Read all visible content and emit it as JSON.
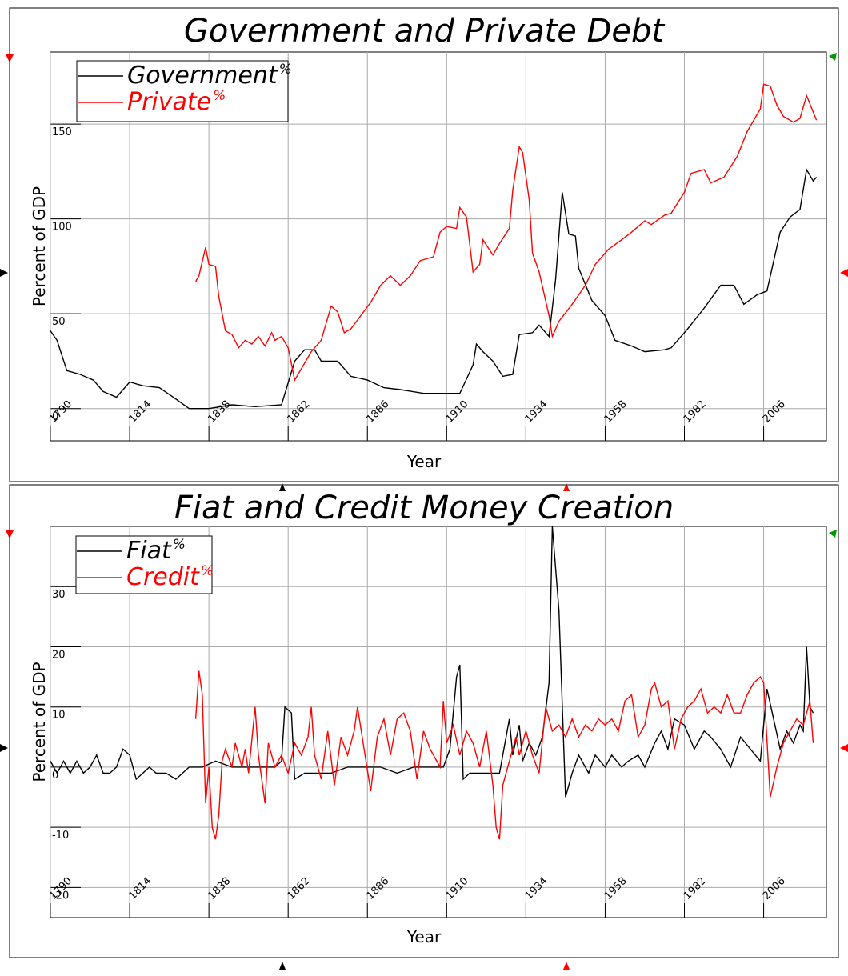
{
  "chart_data": [
    {
      "type": "line",
      "title": "Government and Private Debt",
      "x_label": "Year",
      "y_label": "Percent of GDP",
      "xlim": [
        1790,
        2025
      ],
      "ylim": [
        -17,
        188
      ],
      "grid": true,
      "xticks": [
        1790,
        1814,
        1838,
        1862,
        1886,
        1910,
        1934,
        1958,
        1982,
        2006
      ],
      "yticks": [
        0,
        50,
        100,
        150
      ],
      "series": [
        {
          "name": "Government",
          "units": "%",
          "color": "#000000",
          "x": [
            1790,
            1792,
            1795,
            1799,
            1803,
            1806,
            1810,
            1814,
            1818,
            1823,
            1828,
            1832,
            1838,
            1845,
            1852,
            1860,
            1864,
            1867,
            1870,
            1872,
            1877,
            1881,
            1886,
            1891,
            1896,
            1903,
            1910,
            1914,
            1918,
            1919,
            1921,
            1924,
            1927,
            1930,
            1932,
            1936,
            1938,
            1941,
            1943,
            1945,
            1947,
            1949,
            1950,
            1954,
            1958,
            1961,
            1966,
            1970,
            1976,
            1978,
            1983,
            1988,
            1993,
            1997,
            2000,
            2004,
            2007,
            2011,
            2014,
            2017,
            2019,
            2021,
            2022
          ],
          "values": [
            41,
            36,
            20,
            18,
            15,
            9,
            6,
            14,
            12,
            11,
            5,
            0,
            0,
            2,
            1,
            2,
            25,
            31,
            31,
            25,
            25,
            17,
            15,
            11,
            10,
            8,
            8,
            8,
            23,
            34,
            30,
            25,
            17,
            18,
            39,
            40,
            44,
            38,
            68,
            114,
            92,
            91,
            74,
            57,
            49,
            36,
            33,
            30,
            31,
            32,
            42,
            53,
            65,
            65,
            55,
            60,
            62,
            93,
            101,
            105,
            126,
            120,
            122
          ]
        },
        {
          "name": "Private",
          "units": "%",
          "color": "#ff0000",
          "x": [
            1834,
            1835,
            1837,
            1838,
            1840,
            1841,
            1843,
            1845,
            1847,
            1849,
            1851,
            1853,
            1855,
            1857,
            1858,
            1860,
            1862,
            1864,
            1866,
            1869,
            1872,
            1875,
            1877,
            1879,
            1881,
            1884,
            1887,
            1890,
            1893,
            1896,
            1899,
            1902,
            1906,
            1908,
            1910,
            1913,
            1914,
            1916,
            1918,
            1920,
            1921,
            1924,
            1926,
            1929,
            1930,
            1932,
            1933,
            1935,
            1936,
            1938,
            1941,
            1942,
            1944,
            1948,
            1952,
            1955,
            1959,
            1963,
            1966,
            1970,
            1972,
            1976,
            1978,
            1982,
            1984,
            1988,
            1990,
            1994,
            1998,
            2001,
            2005,
            2006,
            2008,
            2010,
            2012,
            2015,
            2017,
            2019,
            2022
          ],
          "values": [
            67,
            70,
            85,
            76,
            75,
            59,
            41,
            39,
            32,
            36,
            34,
            38,
            33,
            40,
            36,
            38,
            32,
            15,
            21,
            30,
            36,
            54,
            51,
            40,
            42,
            49,
            56,
            65,
            70,
            65,
            70,
            78,
            80,
            93,
            96,
            95,
            106,
            101,
            72,
            76,
            89,
            81,
            87,
            95,
            115,
            138,
            135,
            110,
            82,
            72,
            49,
            38,
            46,
            55,
            65,
            76,
            84,
            89,
            93,
            99,
            97,
            102,
            103,
            114,
            124,
            126,
            119,
            122,
            133,
            146,
            158,
            171,
            170,
            160,
            154,
            151,
            153,
            165,
            152
          ]
        }
      ]
    },
    {
      "type": "line",
      "title": "Fiat and Credit Money Creation",
      "x_label": "Year",
      "y_label": "Percent of GDP",
      "xlim": [
        1790,
        2025
      ],
      "ylim": [
        -25,
        40
      ],
      "grid": true,
      "xticks": [
        1790,
        1814,
        1838,
        1862,
        1886,
        1910,
        1934,
        1958,
        1982,
        2006
      ],
      "yticks": [
        -20,
        -10,
        0,
        10,
        20,
        30
      ],
      "series": [
        {
          "name": "Fiat",
          "units": "%",
          "color": "#000000",
          "x": [
            1790,
            1792,
            1794,
            1796,
            1798,
            1800,
            1802,
            1804,
            1806,
            1808,
            1810,
            1812,
            1814,
            1816,
            1818,
            1820,
            1822,
            1825,
            1828,
            1832,
            1836,
            1840,
            1845,
            1850,
            1855,
            1858,
            1860,
            1861,
            1863,
            1864,
            1867,
            1870,
            1875,
            1880,
            1885,
            1890,
            1895,
            1900,
            1905,
            1909,
            1911,
            1913,
            1914,
            1915,
            1917,
            1920,
            1923,
            1926,
            1928,
            1929,
            1930,
            1932,
            1933,
            1935,
            1937,
            1939,
            1941,
            1942,
            1944,
            1946,
            1948,
            1950,
            1953,
            1955,
            1958,
            1960,
            1963,
            1965,
            1968,
            1970,
            1973,
            1975,
            1977,
            1979,
            1982,
            1985,
            1988,
            1990,
            1993,
            1996,
            1999,
            2002,
            2005,
            2007,
            2009,
            2011,
            2013,
            2015,
            2017,
            2018,
            2019,
            2020,
            2021
          ],
          "values": [
            1,
            -1,
            1,
            -1,
            1,
            -1,
            0,
            2,
            -1,
            -1,
            0,
            3,
            2,
            -2,
            -1,
            0,
            -1,
            -1,
            -2,
            0,
            0,
            1,
            0,
            0,
            0,
            0,
            1,
            10,
            9,
            -2,
            -1,
            -1,
            -1,
            0,
            0,
            0,
            -1,
            0,
            0,
            0,
            3,
            15,
            17,
            -2,
            -1,
            -1,
            -1,
            -1,
            5,
            8,
            2,
            7,
            1,
            4,
            2,
            5,
            14,
            40,
            26,
            -5,
            -1,
            2,
            -1,
            2,
            0,
            2,
            0,
            1,
            2,
            0,
            4,
            6,
            3,
            8,
            7,
            3,
            6,
            5,
            3,
            0,
            5,
            3,
            1,
            13,
            8,
            3,
            6,
            4,
            7,
            6,
            20,
            10,
            9
          ]
        },
        {
          "name": "Credit",
          "units": "%",
          "color": "#ff0000",
          "x": [
            1834,
            1835,
            1836,
            1837,
            1838,
            1839,
            1840,
            1841,
            1842,
            1843,
            1845,
            1846,
            1848,
            1849,
            1850,
            1852,
            1853,
            1855,
            1856,
            1858,
            1860,
            1862,
            1864,
            1866,
            1868,
            1869,
            1870,
            1872,
            1874,
            1876,
            1878,
            1880,
            1882,
            1883,
            1885,
            1887,
            1889,
            1891,
            1893,
            1895,
            1897,
            1899,
            1901,
            1903,
            1905,
            1908,
            1909,
            1910,
            1912,
            1914,
            1916,
            1918,
            1920,
            1922,
            1924,
            1925,
            1926,
            1927,
            1929,
            1931,
            1932,
            1934,
            1936,
            1938,
            1940,
            1942,
            1944,
            1946,
            1948,
            1950,
            1952,
            1954,
            1956,
            1958,
            1960,
            1962,
            1964,
            1966,
            1968,
            1970,
            1972,
            1973,
            1975,
            1977,
            1979,
            1981,
            1983,
            1985,
            1987,
            1989,
            1991,
            1993,
            1995,
            1997,
            1999,
            2001,
            2003,
            2005,
            2006,
            2008,
            2010,
            2012,
            2014,
            2016,
            2018,
            2020,
            2021
          ],
          "values": [
            8,
            16,
            12,
            -6,
            0,
            -10,
            -12,
            -8,
            1,
            3,
            0,
            4,
            0,
            3,
            -1,
            10,
            2,
            -6,
            4,
            0,
            2,
            -1,
            4,
            2,
            5,
            10,
            2,
            -2,
            6,
            -3,
            5,
            2,
            6,
            10,
            3,
            -4,
            5,
            8,
            2,
            8,
            9,
            6,
            -2,
            6,
            3,
            0,
            11,
            4,
            7,
            2,
            6,
            4,
            0,
            6,
            -3,
            -10,
            -12,
            -3,
            1,
            5,
            2,
            6,
            2,
            -1,
            10,
            6,
            7,
            5,
            8,
            5,
            7,
            6,
            8,
            7,
            8,
            6,
            11,
            12,
            5,
            7,
            13,
            14,
            10,
            11,
            3,
            8,
            10,
            11,
            13,
            9,
            10,
            9,
            12,
            9,
            9,
            12,
            14,
            15,
            14,
            -5,
            0,
            4,
            6,
            8,
            7,
            11,
            4
          ]
        }
      ]
    }
  ]
}
